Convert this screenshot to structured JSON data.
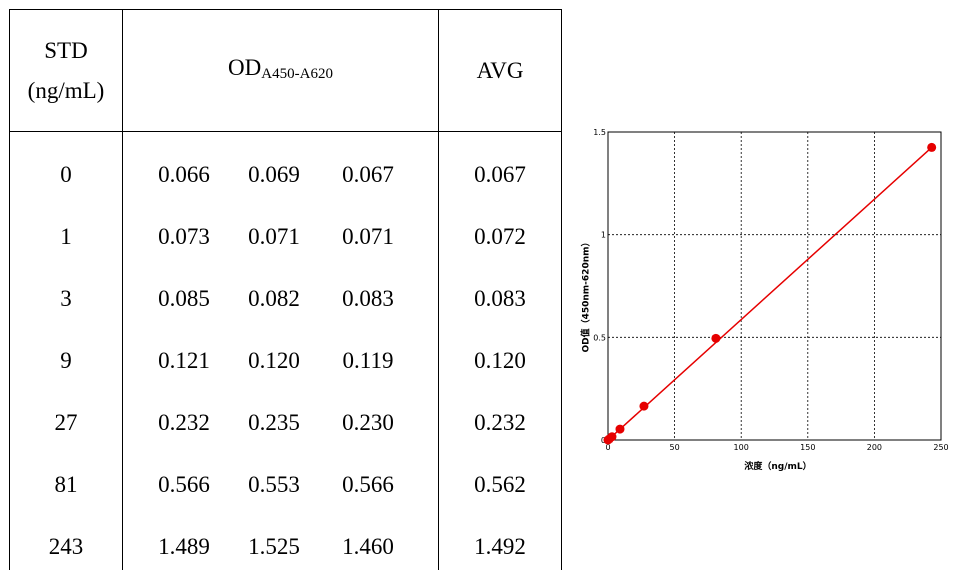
{
  "table": {
    "header": {
      "std_line1": "STD",
      "std_line2": "(ng/mL)",
      "od_main": "OD",
      "od_sub": "A450-A620",
      "avg": "AVG"
    },
    "rows": [
      {
        "std": "0",
        "r1": "0.066",
        "r2": "0.069",
        "r3": "0.067",
        "avg": "0.067"
      },
      {
        "std": "1",
        "r1": "0.073",
        "r2": "0.071",
        "r3": "0.071",
        "avg": "0.072"
      },
      {
        "std": "3",
        "r1": "0.085",
        "r2": "0.082",
        "r3": "0.083",
        "avg": "0.083"
      },
      {
        "std": "9",
        "r1": "0.121",
        "r2": "0.120",
        "r3": "0.119",
        "avg": "0.120"
      },
      {
        "std": "27",
        "r1": "0.232",
        "r2": "0.235",
        "r3": "0.230",
        "avg": "0.232"
      },
      {
        "std": "81",
        "r1": "0.566",
        "r2": "0.553",
        "r3": "0.566",
        "avg": "0.562"
      },
      {
        "std": "243",
        "r1": "1.489",
        "r2": "1.525",
        "r3": "1.460",
        "avg": "1.492"
      }
    ]
  },
  "chart_data": {
    "type": "scatter",
    "xlabel": "浓度（ng/mL）",
    "ylabel": "OD值（450nm-620nm）",
    "xlim": [
      0,
      250
    ],
    "ylim": [
      0,
      1.5
    ],
    "x_ticks": [
      "0",
      "50",
      "100",
      "150",
      "200",
      "250"
    ],
    "y_ticks": [
      "0",
      "0.5",
      "1",
      "1.5"
    ],
    "grid": true,
    "grid_style": "dotted",
    "color": "#e60000",
    "series": [
      {
        "x": [
          0,
          1,
          3,
          9,
          27,
          81,
          243
        ],
        "y": [
          0.0,
          0.005,
          0.016,
          0.053,
          0.165,
          0.495,
          1.425
        ]
      }
    ],
    "fit_line": {
      "x": [
        0,
        243
      ],
      "y": [
        0.0,
        1.425
      ]
    }
  }
}
